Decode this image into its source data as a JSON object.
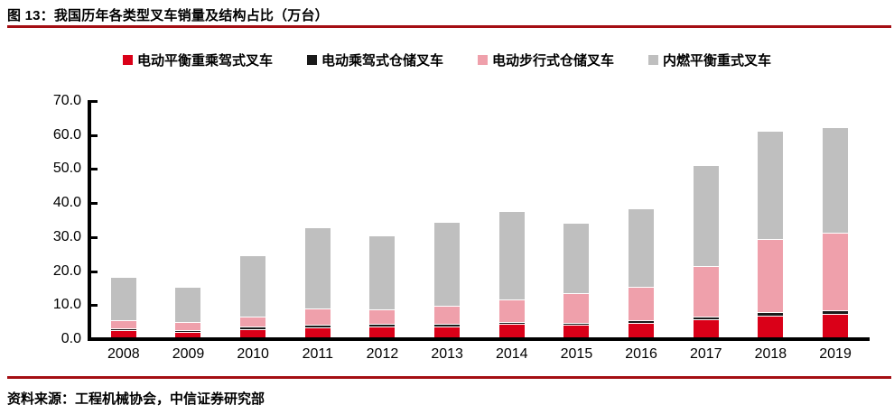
{
  "header": {
    "title": "图 13：我国历年各类型叉车销量及结构占比（万台）"
  },
  "footer": {
    "source": "资料来源：工程机械协会，中信证券研究部"
  },
  "colors": {
    "rule_red": "#A40E13",
    "axis_black": "#000000",
    "series_red": "#DA0018",
    "series_black": "#1A1A1A",
    "series_pink": "#EFA0AB",
    "series_gray": "#BFBFBF"
  },
  "chart_data": {
    "type": "bar",
    "stacked": true,
    "title": "图 13：我国历年各类型叉车销量及结构占比（万台）",
    "unit": "万台",
    "categories": [
      "2008",
      "2009",
      "2010",
      "2011",
      "2012",
      "2013",
      "2014",
      "2015",
      "2016",
      "2017",
      "2018",
      "2019"
    ],
    "series": [
      {
        "name": "电动平衡重乘驾式叉车",
        "color": "#DA0018",
        "values": [
          1.8,
          1.4,
          2.1,
          2.7,
          2.8,
          3.0,
          3.6,
          3.4,
          3.9,
          5.0,
          6.2,
          6.7
        ]
      },
      {
        "name": "电动乘驾式仓储叉车",
        "color": "#1A1A1A",
        "values": [
          0.3,
          0.2,
          0.5,
          0.6,
          0.6,
          0.5,
          0.5,
          0.4,
          0.5,
          0.6,
          0.7,
          0.6
        ]
      },
      {
        "name": "电动步行式仓储叉车",
        "color": "#EFA0AB",
        "values": [
          2.2,
          2.1,
          2.6,
          4.5,
          4.1,
          5.0,
          6.3,
          8.5,
          9.6,
          14.5,
          21.2,
          22.6
        ]
      },
      {
        "name": "内燃平衡重式叉车",
        "color": "#BFBFBF",
        "values": [
          12.4,
          10.2,
          18.0,
          23.6,
          21.3,
          24.4,
          25.6,
          20.4,
          23.0,
          29.6,
          31.6,
          30.9
        ]
      }
    ],
    "totals": [
      16.7,
      13.9,
      23.2,
      31.4,
      28.8,
      32.9,
      36.0,
      32.7,
      37.0,
      49.7,
      59.7,
      60.8
    ],
    "ylim": [
      0,
      70
    ],
    "ytick_step": 10,
    "ytick_labels": [
      "0.0",
      "10.0",
      "20.0",
      "30.0",
      "40.0",
      "50.0",
      "60.0",
      "70.0"
    ],
    "grid": false,
    "legend_position": "top"
  }
}
